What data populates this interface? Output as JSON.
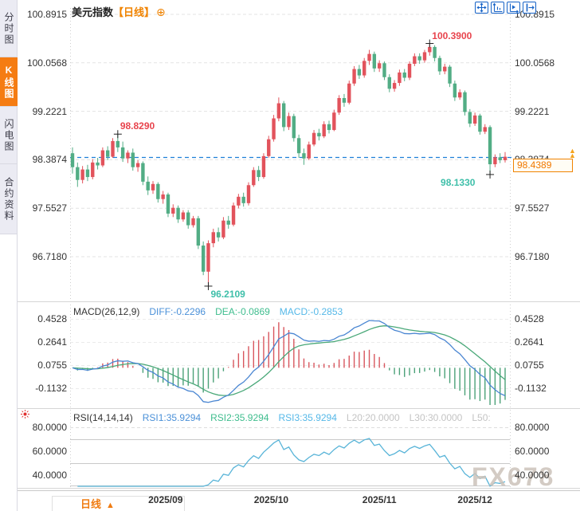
{
  "sidebar": {
    "tabs": [
      {
        "label": "分时图"
      },
      {
        "label": "K线图"
      },
      {
        "label": "闪电图"
      },
      {
        "label": "合约资料"
      }
    ],
    "active_index": 1
  },
  "header": {
    "symbol": "美元指数",
    "period_tag": "【日线】",
    "add_icon": "⊕"
  },
  "toolbar": {
    "buttons": [
      "move-chart",
      "fit-price-axis",
      "fit-time-axis",
      "scroll-to-latest"
    ]
  },
  "colors": {
    "up": "#e2535c",
    "down": "#52ad85",
    "diff_line": "#4a86d2",
    "dea_line": "#49a878",
    "macd_hist_up": "#d8565e",
    "macd_hist_down": "#4ba178",
    "rsi_line": "#58b4d8",
    "dashed_line_blue": "#1e7fd8",
    "accent_orange": "#f57c12",
    "annotation_red": "#e8444d",
    "annotation_teal": "#3ebfa9"
  },
  "main_chart": {
    "y_axis_labels": [
      "100.8915",
      "100.0568",
      "99.2221",
      "98.3874",
      "97.5527",
      "96.7180"
    ],
    "current_price": "98.4389",
    "annotations": [
      {
        "text": "98.8290",
        "candle": 9,
        "price": 98.829,
        "color": "red",
        "placement": "above-right"
      },
      {
        "text": "100.3900",
        "candle": 71,
        "price": 100.39,
        "color": "red",
        "placement": "above-right"
      },
      {
        "text": "98.1330",
        "candle": 83,
        "price": 98.133,
        "color": "teal",
        "placement": "below-left"
      },
      {
        "text": "96.2109",
        "candle": 27,
        "price": 96.2109,
        "color": "teal",
        "placement": "below-right"
      }
    ]
  },
  "chart_data": {
    "type": "candlestick",
    "title": "美元指数 日线",
    "x_labels": [
      "2025/09",
      "2025/10",
      "2025/11",
      "2025/12"
    ],
    "candles": [
      [
        98.5,
        98.6,
        98.15,
        98.26
      ],
      [
        98.26,
        98.34,
        97.92,
        98.04
      ],
      [
        98.04,
        98.28,
        97.98,
        98.22
      ],
      [
        98.22,
        98.3,
        98.02,
        98.09
      ],
      [
        98.09,
        98.4,
        98.05,
        98.34
      ],
      [
        98.34,
        98.42,
        98.22,
        98.29
      ],
      [
        98.29,
        98.6,
        98.26,
        98.55
      ],
      [
        98.55,
        98.62,
        98.38,
        98.44
      ],
      [
        98.44,
        98.76,
        98.42,
        98.71
      ],
      [
        98.71,
        98.829,
        98.52,
        98.6
      ],
      [
        98.6,
        98.7,
        98.35,
        98.41
      ],
      [
        98.41,
        98.55,
        98.33,
        98.51
      ],
      [
        98.51,
        98.58,
        98.2,
        98.26
      ],
      [
        98.26,
        98.38,
        98.18,
        98.33
      ],
      [
        98.33,
        98.36,
        97.95,
        98.01
      ],
      [
        98.01,
        98.1,
        97.78,
        97.86
      ],
      [
        97.86,
        98.02,
        97.8,
        97.97
      ],
      [
        97.97,
        98.0,
        97.65,
        97.71
      ],
      [
        97.71,
        97.85,
        97.63,
        97.79
      ],
      [
        97.79,
        97.82,
        97.4,
        97.46
      ],
      [
        97.46,
        97.62,
        97.4,
        97.56
      ],
      [
        97.56,
        97.6,
        97.3,
        97.36
      ],
      [
        97.36,
        97.52,
        97.32,
        97.48
      ],
      [
        97.48,
        97.52,
        97.2,
        97.26
      ],
      [
        97.26,
        97.42,
        97.22,
        97.38
      ],
      [
        97.38,
        97.42,
        96.85,
        96.91
      ],
      [
        96.91,
        96.98,
        96.4,
        96.46
      ],
      [
        96.46,
        97.0,
        96.2109,
        96.95
      ],
      [
        96.95,
        97.2,
        96.88,
        97.14
      ],
      [
        97.14,
        97.22,
        96.98,
        97.05
      ],
      [
        97.05,
        97.4,
        97.02,
        97.34
      ],
      [
        97.34,
        97.42,
        97.2,
        97.27
      ],
      [
        97.27,
        97.65,
        97.24,
        97.6
      ],
      [
        97.6,
        97.8,
        97.55,
        97.75
      ],
      [
        97.75,
        97.82,
        97.58,
        97.64
      ],
      [
        97.64,
        98.0,
        97.6,
        97.95
      ],
      [
        97.95,
        98.26,
        97.92,
        98.21
      ],
      [
        98.21,
        98.28,
        98.02,
        98.09
      ],
      [
        98.09,
        98.5,
        98.06,
        98.45
      ],
      [
        98.45,
        98.8,
        98.42,
        98.74
      ],
      [
        98.74,
        99.16,
        98.7,
        99.1
      ],
      [
        99.1,
        99.46,
        99.05,
        99.36
      ],
      [
        99.36,
        99.4,
        98.88,
        98.95
      ],
      [
        98.95,
        99.2,
        98.9,
        99.14
      ],
      [
        99.14,
        99.18,
        98.7,
        98.76
      ],
      [
        98.76,
        98.82,
        98.42,
        98.5
      ],
      [
        98.5,
        98.58,
        98.3,
        98.41
      ],
      [
        98.41,
        98.7,
        98.38,
        98.65
      ],
      [
        98.65,
        98.9,
        98.62,
        98.85
      ],
      [
        98.85,
        98.92,
        98.72,
        98.79
      ],
      [
        98.79,
        99.05,
        98.76,
        99.0
      ],
      [
        99.0,
        99.06,
        98.84,
        98.9
      ],
      [
        98.9,
        99.25,
        98.88,
        99.2
      ],
      [
        99.2,
        99.5,
        99.16,
        99.45
      ],
      [
        99.45,
        99.52,
        99.3,
        99.37
      ],
      [
        99.37,
        99.75,
        99.34,
        99.7
      ],
      [
        99.7,
        100.0,
        99.66,
        99.95
      ],
      [
        99.95,
        100.02,
        99.78,
        99.84
      ],
      [
        99.84,
        100.14,
        99.8,
        100.09
      ],
      [
        100.09,
        100.28,
        100.02,
        100.21
      ],
      [
        100.21,
        100.25,
        99.9,
        99.96
      ],
      [
        99.96,
        100.1,
        99.9,
        100.05
      ],
      [
        100.05,
        100.08,
        99.76,
        99.81
      ],
      [
        99.81,
        99.86,
        99.55,
        99.61
      ],
      [
        99.61,
        99.76,
        99.56,
        99.71
      ],
      [
        99.71,
        99.94,
        99.66,
        99.89
      ],
      [
        99.89,
        99.95,
        99.74,
        99.8
      ],
      [
        99.8,
        100.08,
        99.76,
        100.04
      ],
      [
        100.04,
        100.22,
        100.0,
        100.17
      ],
      [
        100.17,
        100.22,
        100.04,
        100.1
      ],
      [
        100.1,
        100.28,
        100.06,
        100.24
      ],
      [
        100.24,
        100.39,
        100.18,
        100.33
      ],
      [
        100.33,
        100.36,
        100.08,
        100.14
      ],
      [
        100.14,
        100.18,
        99.85,
        99.91
      ],
      [
        99.91,
        100.04,
        99.86,
        99.99
      ],
      [
        99.99,
        100.02,
        99.64,
        99.7
      ],
      [
        99.7,
        99.75,
        99.4,
        99.46
      ],
      [
        99.46,
        99.6,
        99.42,
        99.55
      ],
      [
        99.55,
        99.58,
        99.15,
        99.21
      ],
      [
        99.21,
        99.26,
        98.95,
        99.01
      ],
      [
        99.01,
        99.2,
        98.97,
        99.15
      ],
      [
        99.15,
        99.18,
        98.82,
        98.87
      ],
      [
        98.87,
        99.0,
        98.83,
        98.95
      ],
      [
        98.95,
        98.98,
        98.133,
        98.31
      ],
      [
        98.31,
        98.48,
        98.26,
        98.43
      ],
      [
        98.43,
        98.5,
        98.33,
        98.38
      ],
      [
        98.38,
        98.52,
        98.34,
        98.4389
      ]
    ]
  },
  "macd": {
    "title": "MACD(26,12,9)",
    "items": [
      {
        "text": "DIFF:-0.2296"
      },
      {
        "text": "DEA:-0.0869"
      },
      {
        "text": "MACD:-0.2853"
      }
    ],
    "y_axis_labels": [
      "0.4528",
      "0.2641",
      "0.0755",
      "-0.1132"
    ]
  },
  "rsi": {
    "title": "RSI(14,14,14)",
    "items": [
      {
        "text": "RSI1:35.9294"
      },
      {
        "text": "RSI2:35.9294"
      },
      {
        "text": "RSI3:35.9294"
      },
      {
        "text": "L20:20.0000"
      },
      {
        "text": "L30:30.0000"
      },
      {
        "text": "L50:"
      }
    ],
    "y_axis_labels": [
      "80.0000",
      "60.0000",
      "40.0000"
    ]
  },
  "bottom_bar": {
    "period_label": "日线",
    "arrow": "▲"
  },
  "watermark": "FX678"
}
